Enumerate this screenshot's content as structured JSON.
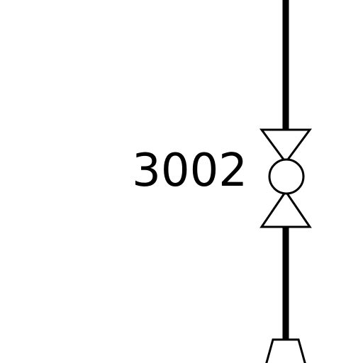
{
  "diagram": {
    "valve_tag": "3002",
    "line_color": "#000000",
    "background_color": "#ffffff",
    "symbols": [
      "pipe-line",
      "gate-valve-with-circle",
      "reducer-fitting"
    ]
  }
}
